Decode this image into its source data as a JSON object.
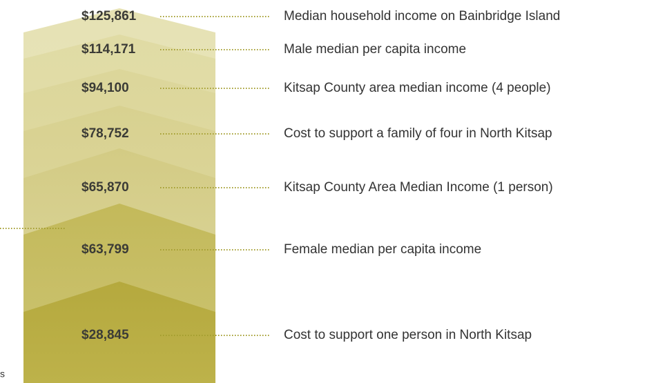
{
  "items": [
    {
      "value": "$125,861",
      "label": "Median household income on Bainbridge Island"
    },
    {
      "value": "$114,171",
      "label": "Male median per capita income"
    },
    {
      "value": "$94,100",
      "label": "Kitsap County area median income (4 people)"
    },
    {
      "value": "$78,752",
      "label": "Cost to support a family of four in North Kitsap"
    },
    {
      "value": "$65,870",
      "label": "Kitsap County Area Median Income (1 person)"
    },
    {
      "value": "$63,799",
      "label": "Female median per capita income"
    },
    {
      "value": "$28,845",
      "label": "Cost to support one person in North Kitsap"
    }
  ],
  "side_note": "s"
}
